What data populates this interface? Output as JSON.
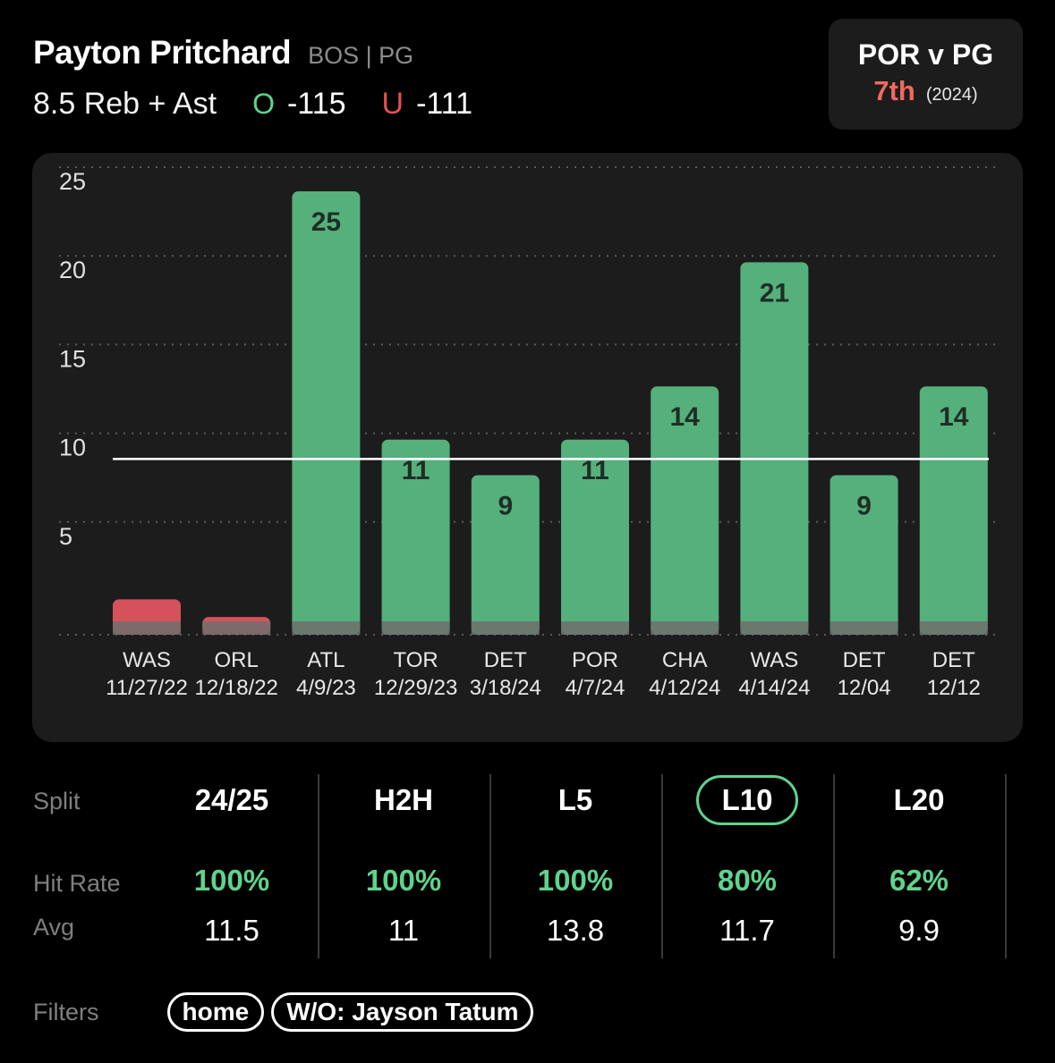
{
  "header": {
    "player_name": "Payton Pritchard",
    "team_pos": "BOS | PG",
    "line_label": "8.5 Reb + Ast",
    "over_glyph": "O",
    "over_odds": "-115",
    "under_glyph": "U",
    "under_odds": "-111"
  },
  "matchup": {
    "title": "POR v PG",
    "rank": "7th",
    "year": "(2024)"
  },
  "chart_data": {
    "type": "bar",
    "categories": [
      "WAS",
      "ORL",
      "ATL",
      "TOR",
      "DET",
      "POR",
      "CHA",
      "WAS",
      "DET",
      "DET"
    ],
    "dates": [
      "11/27/22",
      "12/18/22",
      "4/9/23",
      "12/29/23",
      "3/18/24",
      "4/7/24",
      "4/12/24",
      "4/14/24",
      "12/04",
      "12/12"
    ],
    "values": [
      2,
      1,
      25,
      11,
      9,
      11,
      14,
      21,
      9,
      14
    ],
    "show_value_labels": [
      false,
      false,
      true,
      true,
      true,
      true,
      true,
      true,
      true,
      true
    ],
    "yticks": [
      5,
      10,
      15,
      20,
      25
    ],
    "ylim": [
      0,
      25
    ],
    "threshold": 8.5,
    "grid": "dotted",
    "colors": {
      "hit": "#55b07c",
      "miss": "#d6525a",
      "base": "#6e6e6e",
      "line": "#ffffff"
    }
  },
  "splits": {
    "labels": {
      "split": "Split",
      "hit_rate": "Hit Rate",
      "avg": "Avg"
    },
    "columns": [
      {
        "name": "24/25",
        "hit_rate": "100%",
        "avg": "11.5",
        "active": false
      },
      {
        "name": "H2H",
        "hit_rate": "100%",
        "avg": "11",
        "active": false
      },
      {
        "name": "L5",
        "hit_rate": "100%",
        "avg": "13.8",
        "active": false
      },
      {
        "name": "L10",
        "hit_rate": "80%",
        "avg": "11.7",
        "active": true
      },
      {
        "name": "L20",
        "hit_rate": "62%",
        "avg": "9.9",
        "active": false
      }
    ]
  },
  "filters": {
    "label": "Filters",
    "chips": [
      "home",
      "W/O: Jayson Tatum"
    ]
  }
}
